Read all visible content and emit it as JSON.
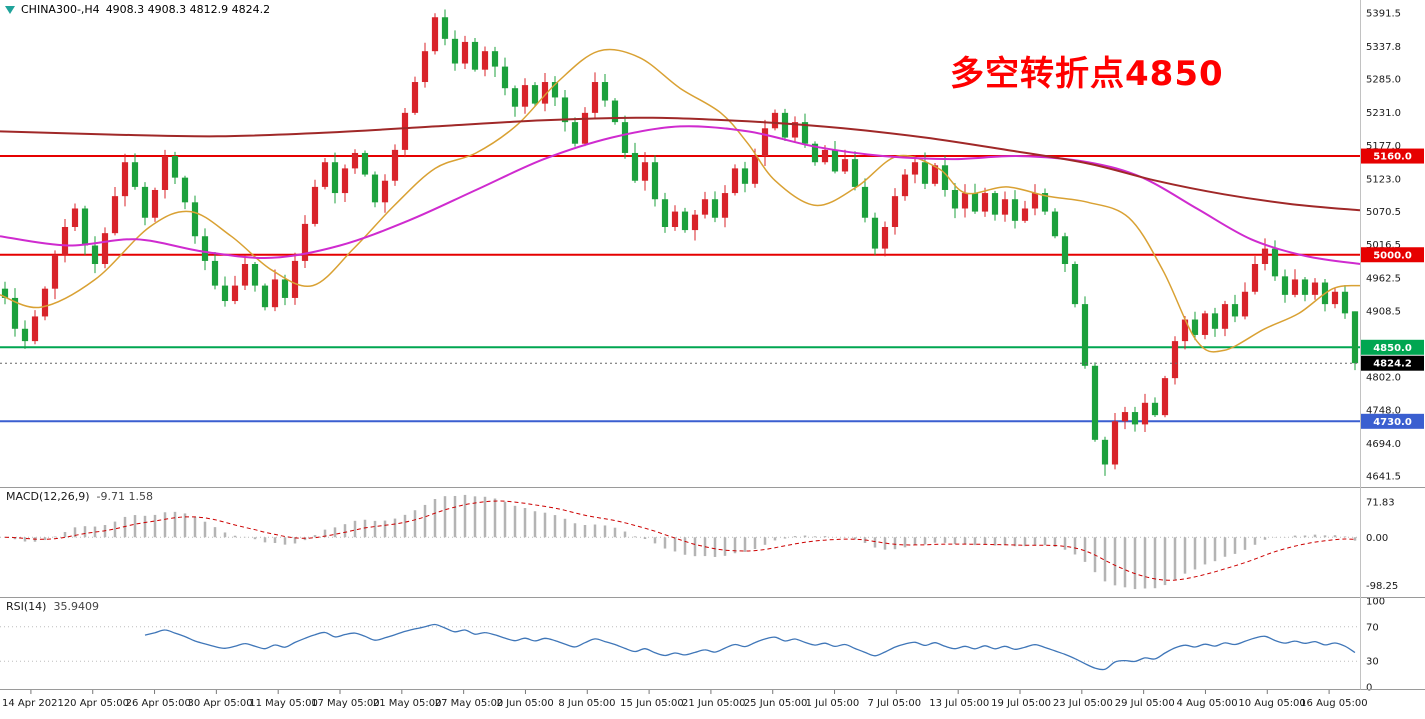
{
  "header": {
    "symbol": "CHINA300-,H4",
    "ohlc": "4908.3 4908.3 4812.9 4824.2"
  },
  "annotation": {
    "text": "多空转折点4850",
    "color": "#ff0000"
  },
  "panels": {
    "macd": {
      "label": "MACD(12,26,9)",
      "values": "-9.71 1.58",
      "axis_labels": [
        "71.83",
        "0.00",
        "-98.25"
      ]
    },
    "rsi": {
      "label": "RSI(14)",
      "value": "35.9409",
      "axis_labels": [
        "100",
        "70",
        "30",
        "0"
      ]
    }
  },
  "price_axis": {
    "labels": [
      "5391.5",
      "5337.8",
      "5285.0",
      "5231.0",
      "5177.0",
      "5123.0",
      "5070.5",
      "5016.5",
      "4962.5",
      "4908.5",
      "4854.5",
      "4802.0",
      "4748.0",
      "4694.0",
      "4641.5"
    ]
  },
  "time_axis": {
    "labels": [
      "14 Apr 2021",
      "20 Apr 05:00",
      "26 Apr 05:00",
      "30 Apr 05:00",
      "11 May 05:00",
      "17 May 05:00",
      "21 May 05:00",
      "27 May 05:00",
      "2 Jun 05:00",
      "8 Jun 05:00",
      "15 Jun 05:00",
      "21 Jun 05:00",
      "25 Jun 05:00",
      "1 Jul 05:00",
      "7 Jul 05:00",
      "13 Jul 05:00",
      "19 Jul 05:00",
      "23 Jul 05:00",
      "29 Jul 05:00",
      "4 Aug 05:00",
      "10 Aug 05:00",
      "16 Aug 05:00"
    ]
  },
  "hlines": [
    {
      "value": 5160.0,
      "label": "5160.0",
      "color": "#e60000"
    },
    {
      "value": 5000.0,
      "label": "5000.0",
      "color": "#e60000"
    },
    {
      "value": 4850.0,
      "label": "4850.0",
      "color": "#00a651"
    },
    {
      "value": 4730.0,
      "label": "4730.0",
      "color": "#3a5fd0"
    }
  ],
  "current_price": {
    "value": 4824.2,
    "label": "4824.2",
    "color": "#000000"
  },
  "chart_data": {
    "type": "candlestick",
    "title": "CHINA300- H4",
    "ylim": [
      4641.5,
      5391.5
    ],
    "up_color": "#d8232a",
    "down_color": "#1ca03c",
    "first_open": 4945,
    "closes": [
      4930,
      4880,
      4860,
      4900,
      4945,
      5000,
      5045,
      5075,
      5015,
      4985,
      5035,
      5095,
      5150,
      5110,
      5060,
      5105,
      5160,
      5125,
      5085,
      5030,
      4990,
      4950,
      4925,
      4950,
      4985,
      4950,
      4915,
      4960,
      4930,
      4990,
      5050,
      5110,
      5150,
      5100,
      5140,
      5165,
      5130,
      5085,
      5120,
      5170,
      5230,
      5280,
      5330,
      5385,
      5350,
      5310,
      5345,
      5300,
      5330,
      5305,
      5270,
      5240,
      5275,
      5245,
      5280,
      5255,
      5215,
      5180,
      5230,
      5280,
      5250,
      5215,
      5165,
      5120,
      5150,
      5090,
      5045,
      5070,
      5040,
      5065,
      5090,
      5060,
      5100,
      5140,
      5115,
      5160,
      5205,
      5230,
      5190,
      5215,
      5180,
      5150,
      5170,
      5135,
      5155,
      5110,
      5060,
      5010,
      5045,
      5095,
      5130,
      5150,
      5115,
      5145,
      5105,
      5075,
      5100,
      5070,
      5100,
      5065,
      5090,
      5055,
      5075,
      5100,
      5070,
      5030,
      4985,
      4920,
      4820,
      4700,
      4660,
      4730,
      4745,
      4725,
      4760,
      4740,
      4800,
      4860,
      4895,
      4870,
      4905,
      4880,
      4920,
      4900,
      4940,
      4985,
      5010,
      4965,
      4935,
      4960,
      4935,
      4955,
      4920,
      4940,
      4905,
      4824.2
    ],
    "wick_overrides": {
      "43": {
        "high": 5391.5
      },
      "110": {
        "low": 4641.5
      },
      "135": {
        "open": 4908.3,
        "high": 4908.3,
        "low": 4812.9,
        "close": 4824.2
      }
    },
    "moving_averages": [
      {
        "name": "ma-fast",
        "color": "#d9a133",
        "width": 1.5,
        "points": [
          [
            0,
            4935
          ],
          [
            0.03,
            4915
          ],
          [
            0.07,
            4960
          ],
          [
            0.11,
            5045
          ],
          [
            0.14,
            5070
          ],
          [
            0.17,
            5030
          ],
          [
            0.2,
            4975
          ],
          [
            0.23,
            4950
          ],
          [
            0.26,
            5010
          ],
          [
            0.29,
            5080
          ],
          [
            0.32,
            5140
          ],
          [
            0.35,
            5165
          ],
          [
            0.38,
            5210
          ],
          [
            0.41,
            5280
          ],
          [
            0.44,
            5330
          ],
          [
            0.47,
            5320
          ],
          [
            0.5,
            5270
          ],
          [
            0.53,
            5230
          ],
          [
            0.55,
            5180
          ],
          [
            0.57,
            5120
          ],
          [
            0.6,
            5080
          ],
          [
            0.63,
            5110
          ],
          [
            0.66,
            5160
          ],
          [
            0.69,
            5140
          ],
          [
            0.71,
            5100
          ],
          [
            0.74,
            5110
          ],
          [
            0.77,
            5095
          ],
          [
            0.8,
            5085
          ],
          [
            0.83,
            5060
          ],
          [
            0.855,
            4975
          ],
          [
            0.88,
            4860
          ],
          [
            0.9,
            4845
          ],
          [
            0.93,
            4880
          ],
          [
            0.955,
            4905
          ],
          [
            0.98,
            4945
          ],
          [
            1.0,
            4950
          ]
        ]
      },
      {
        "name": "ma-medium",
        "color": "#cf2bcf",
        "width": 2,
        "points": [
          [
            0,
            5030
          ],
          [
            0.05,
            5015
          ],
          [
            0.1,
            5025
          ],
          [
            0.15,
            5005
          ],
          [
            0.2,
            4995
          ],
          [
            0.25,
            5015
          ],
          [
            0.3,
            5055
          ],
          [
            0.35,
            5105
          ],
          [
            0.4,
            5155
          ],
          [
            0.45,
            5190
          ],
          [
            0.5,
            5208
          ],
          [
            0.55,
            5200
          ],
          [
            0.6,
            5175
          ],
          [
            0.65,
            5160
          ],
          [
            0.7,
            5155
          ],
          [
            0.75,
            5160
          ],
          [
            0.8,
            5150
          ],
          [
            0.84,
            5125
          ],
          [
            0.88,
            5075
          ],
          [
            0.92,
            5025
          ],
          [
            0.96,
            4998
          ],
          [
            1.0,
            4985
          ]
        ]
      },
      {
        "name": "ma-slow",
        "color": "#a02828",
        "width": 2,
        "points": [
          [
            0,
            5200
          ],
          [
            0.08,
            5195
          ],
          [
            0.16,
            5192
          ],
          [
            0.24,
            5198
          ],
          [
            0.32,
            5208
          ],
          [
            0.4,
            5218
          ],
          [
            0.48,
            5222
          ],
          [
            0.56,
            5215
          ],
          [
            0.62,
            5205
          ],
          [
            0.68,
            5190
          ],
          [
            0.74,
            5170
          ],
          [
            0.8,
            5148
          ],
          [
            0.85,
            5120
          ],
          [
            0.9,
            5098
          ],
          [
            0.95,
            5082
          ],
          [
            1.0,
            5072
          ]
        ]
      }
    ],
    "indicators": {
      "macd": {
        "fast": 12,
        "slow": 26,
        "signal_period": 9,
        "current_main": -9.71,
        "current_signal": 1.58,
        "histogram_color": "#b4b4b4",
        "signal_color": "#cc0000",
        "axis_values": [
          71.83,
          0,
          -98.25
        ]
      },
      "rsi": {
        "period": 14,
        "current": 35.9409,
        "color": "#3f76b8",
        "levels": [
          70,
          30
        ],
        "range": [
          0,
          100
        ]
      }
    }
  }
}
